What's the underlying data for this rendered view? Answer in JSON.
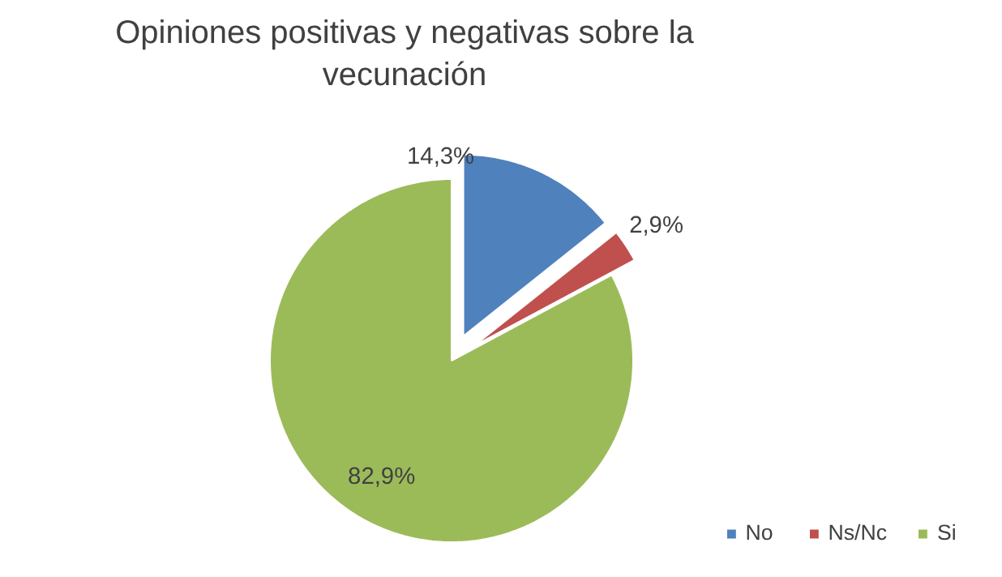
{
  "chart_data": {
    "type": "pie",
    "title": "Opiniones positivas y negativas sobre la vecunación",
    "categories": [
      "No",
      "Ns/Nc",
      "Si"
    ],
    "values": [
      14.3,
      2.9,
      82.9
    ],
    "colors": [
      "#4f81bd",
      "#c0504d",
      "#9bbb59"
    ],
    "value_labels": [
      "14,3%",
      "2,9%",
      "82,9%"
    ],
    "legend": "bottom right"
  }
}
